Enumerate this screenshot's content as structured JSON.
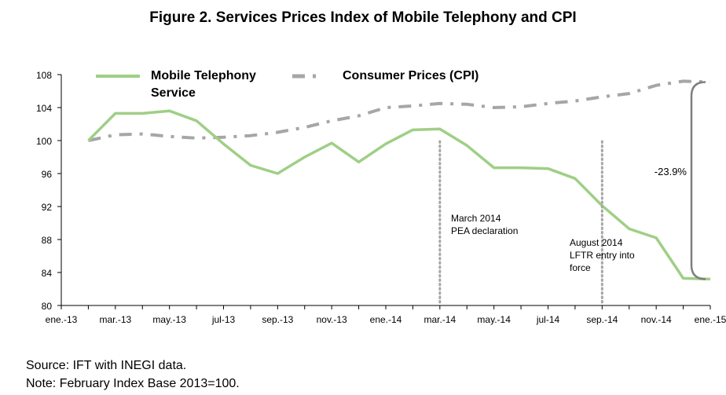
{
  "figure": {
    "title": "Figure 2.  Services Prices Index of Mobile Telephony and CPI"
  },
  "notes": {
    "source": "Source: IFT with INEGI data.",
    "base": "Note: February Index Base 2013=100."
  },
  "chart_data": {
    "type": "line",
    "title": "Figure 2.  Services Prices Index of Mobile Telephony and CPI",
    "xlabel": "",
    "ylabel": "",
    "ylim": [
      80,
      108
    ],
    "yticks": [
      "80",
      "84",
      "88",
      "92",
      "96",
      "100",
      "104",
      "108"
    ],
    "x_tick_labels": [
      "ene.-13",
      "mar.-13",
      "may.-13",
      "jul-13",
      "sep.-13",
      "nov.-13",
      "ene.-14",
      "mar.-14",
      "may.-14",
      "jul-14",
      "sep.-14",
      "nov.-14",
      "ene.-15"
    ],
    "months": 25,
    "grid": false,
    "legend_position": "top-left",
    "series": [
      {
        "name": "Mobile Telephony Service",
        "legend_lines": [
          "Mobile Telephony",
          "Service"
        ],
        "style": "solid",
        "color": "#9fcf86",
        "values": [
          100.0,
          103.3,
          103.3,
          103.6,
          102.4,
          99.6,
          97.0,
          96.0,
          98.0,
          99.7,
          97.4,
          99.6,
          101.3,
          101.4,
          99.4,
          96.7,
          96.7,
          96.6,
          95.4,
          92.1,
          89.3,
          88.2,
          83.3,
          83.2
        ]
      },
      {
        "name": "Consumer Prices (CPI)",
        "legend_lines": [
          "Consumer Prices (CPI)"
        ],
        "style": "dash-dot",
        "color": "#a6a6a6",
        "values": [
          100.0,
          100.7,
          100.8,
          100.5,
          100.3,
          100.4,
          100.6,
          101.0,
          101.6,
          102.4,
          103.0,
          104.0,
          104.2,
          104.5,
          104.4,
          104.0,
          104.1,
          104.5,
          104.8,
          105.3,
          105.7,
          106.7,
          107.2,
          107.1
        ]
      }
    ],
    "annotations": [
      {
        "name": "pea-declaration",
        "x_index": 14,
        "lines": [
          "March 2014",
          "PEA declaration"
        ]
      },
      {
        "name": "lftr-entry",
        "x_index": 20,
        "lines": [
          "August 2014",
          "LFTR entry into",
          "force"
        ]
      }
    ],
    "change_label": "-23.9%",
    "colors": {
      "axis": "#000000",
      "mobile": "#9fcf86",
      "cpi": "#a6a6a6",
      "marker_line": "#a6a6a6",
      "bracket": "#7f7f7f"
    }
  }
}
